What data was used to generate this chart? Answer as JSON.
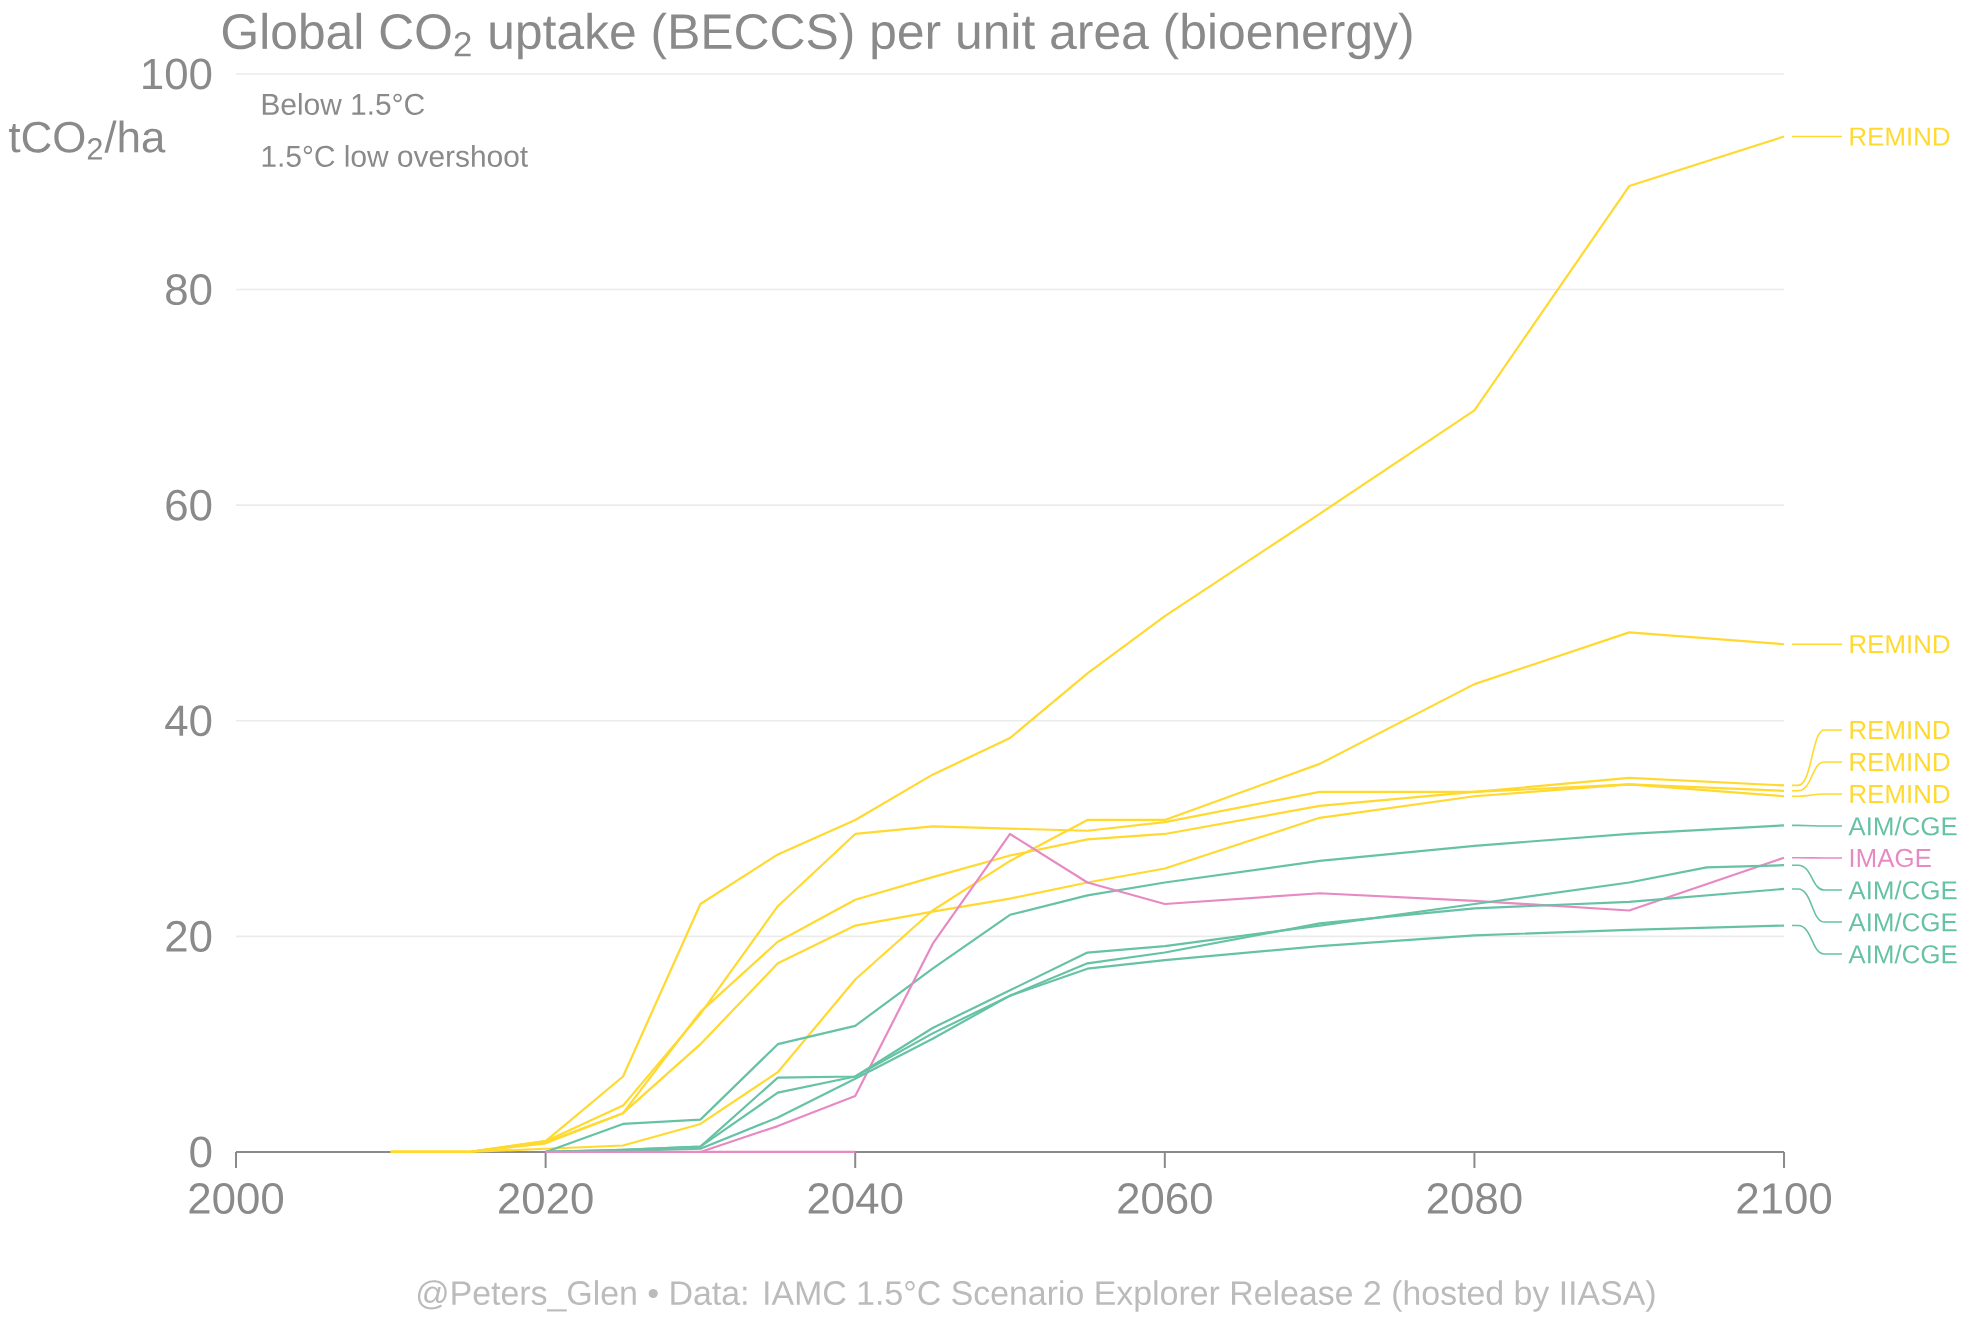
{
  "chart_data": {
    "type": "line",
    "title": "Global CO$_{2}$ uptake (BECCS) per unit area (bioenergy)",
    "ylabel": "tCO$_{2}$/ha",
    "annotations": [
      "Below 1.5°C",
      "1.5°C low overshoot",
      "@Peters_Glen  •  Data: IAMC 1.5°C Scenario Explorer Release 2 (hosted by IIASA)"
    ],
    "xlim": [
      2000,
      2100
    ],
    "xticks": [
      2000,
      2020,
      2040,
      2060,
      2080,
      2100
    ],
    "ylim": [
      0,
      100
    ],
    "yticks": [
      0,
      20,
      40,
      60,
      80,
      100
    ],
    "grid": "y",
    "line_style": "solid",
    "legend": "right",
    "series": [
      {
        "name": "REMIND",
        "color": "#ffd92f",
        "x": [
          2010,
          2015,
          2020,
          2025,
          2030,
          2035,
          2040,
          2045,
          2050,
          2055,
          2060,
          2070,
          2080,
          2090,
          2100
        ],
        "values": [
          0,
          0,
          1,
          7,
          23,
          27.6,
          30.8,
          35,
          38.4,
          44.4,
          49.7,
          59.2,
          68.8,
          89.6,
          94.2
        ]
      },
      {
        "name": "REMIND",
        "color": "#ffd92f",
        "x": [
          2010,
          2015,
          2020,
          2025,
          2030,
          2035,
          2040,
          2045,
          2050,
          2055,
          2060,
          2070,
          2080,
          2090,
          2100
        ],
        "values": [
          0,
          0,
          0.3,
          0.6,
          2.6,
          7.4,
          16,
          22.4,
          27,
          30.8,
          30.8,
          36,
          43.4,
          48.2,
          47.1
        ]
      },
      {
        "name": "REMIND",
        "color": "#ffd92f",
        "x": [
          2010,
          2015,
          2020,
          2025,
          2030,
          2035,
          2040,
          2045,
          2050,
          2055,
          2060,
          2070,
          2080,
          2090,
          2100
        ],
        "values": [
          0,
          0,
          0.9,
          3.6,
          13,
          19.5,
          23.4,
          25.5,
          27.5,
          29,
          29.5,
          32.1,
          33.4,
          34.7,
          34.0
        ]
      },
      {
        "name": "REMIND",
        "color": "#ffd92f",
        "x": [
          2010,
          2015,
          2020,
          2025,
          2030,
          2035,
          2040,
          2045,
          2050,
          2055,
          2060,
          2070,
          2080,
          2090,
          2100
        ],
        "values": [
          0,
          0,
          1,
          4.3,
          12.8,
          22.8,
          29.5,
          30.2,
          30,
          29.8,
          30.6,
          33.4,
          33.4,
          34.1,
          33.5
        ]
      },
      {
        "name": "REMIND",
        "color": "#ffd92f",
        "x": [
          2010,
          2015,
          2020,
          2025,
          2030,
          2035,
          2040,
          2045,
          2050,
          2055,
          2060,
          2070,
          2080,
          2090,
          2100
        ],
        "values": [
          0,
          0,
          0.8,
          3.6,
          10,
          17.5,
          21,
          22.3,
          23.5,
          25,
          26.3,
          31.0,
          33.0,
          34.1,
          33.0
        ]
      },
      {
        "name": "AIM/CGE",
        "color": "#66c2a5",
        "x": [
          2020,
          2025,
          2030,
          2035,
          2040,
          2045,
          2050,
          2055,
          2060,
          2070,
          2080,
          2090,
          2100
        ],
        "values": [
          0,
          2.6,
          3,
          10,
          11.7,
          17,
          22,
          23.8,
          25,
          27,
          28.4,
          29.5,
          30.3
        ]
      },
      {
        "name": "IMAGE",
        "color": "#e78ac3",
        "x": [
          2030,
          2035,
          2040,
          2045,
          2050,
          2055,
          2060,
          2070,
          2080,
          2090,
          2100
        ],
        "values": [
          0,
          2.4,
          5.2,
          19.3,
          29.5,
          25,
          23,
          24,
          23.3,
          22.4,
          27.3
        ]
      },
      {
        "name": "AIM/CGE",
        "color": "#66c2a5",
        "x": [
          2020,
          2025,
          2030,
          2035,
          2040,
          2045,
          2050,
          2055,
          2060,
          2070,
          2080,
          2090,
          2095,
          2100
        ],
        "values": [
          0,
          0.2,
          0.5,
          6.9,
          7,
          11.5,
          15,
          18.5,
          19.1,
          21,
          23,
          25,
          26.4,
          26.6
        ]
      },
      {
        "name": "AIM/CGE",
        "color": "#66c2a5",
        "x": [
          2020,
          2025,
          2030,
          2035,
          2040,
          2045,
          2050,
          2055,
          2060,
          2070,
          2080,
          2090,
          2100
        ],
        "values": [
          0,
          0.2,
          0.5,
          5.5,
          7,
          11,
          14.5,
          17.5,
          18.5,
          21.2,
          22.6,
          23.2,
          24.4
        ]
      },
      {
        "name": "AIM/CGE",
        "color": "#66c2a5",
        "x": [
          2020,
          2025,
          2030,
          2035,
          2040,
          2045,
          2050,
          2055,
          2060,
          2070,
          2080,
          2090,
          2100
        ],
        "values": [
          0,
          0.1,
          0.3,
          3.2,
          6.8,
          10.5,
          14.5,
          17,
          17.8,
          19.1,
          20.1,
          20.6,
          21.0
        ]
      },
      {
        "color": "#e78ac3",
        "x": [
          2020,
          2040
        ],
        "values": [
          0,
          0
        ]
      }
    ]
  }
}
